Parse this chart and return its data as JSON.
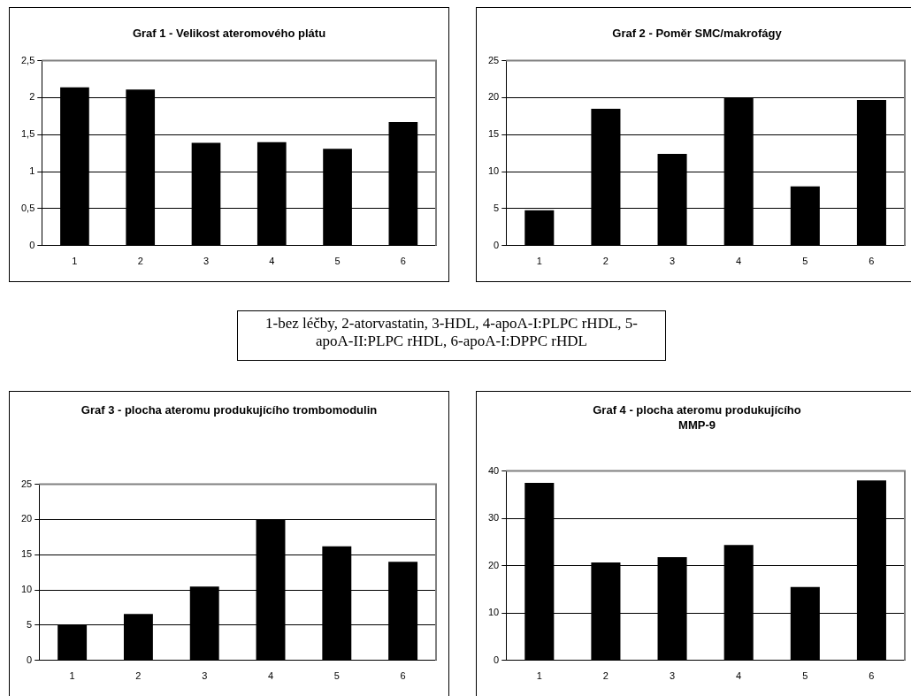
{
  "chart_data": [
    {
      "type": "bar",
      "title": "Graf 1 - Velikost ateromového plátu",
      "categories": [
        "1",
        "2",
        "3",
        "4",
        "5",
        "6"
      ],
      "values": [
        2.14,
        2.11,
        1.39,
        1.4,
        1.31,
        1.67
      ],
      "color": "#000000",
      "ylim": [
        0,
        2.5
      ],
      "yticks": [
        0,
        {
          "value": 0.5,
          "label": "0,5"
        },
        1,
        {
          "value": 1.5,
          "label": "1,5"
        },
        2,
        {
          "value": 2.5,
          "label": "2,5"
        }
      ],
      "grid": "y"
    },
    {
      "type": "bar",
      "title": "Graf 2 - Poměr SMC/makrofágy",
      "categories": [
        "1",
        "2",
        "3",
        "4",
        "5",
        "6"
      ],
      "values": [
        4.8,
        18.5,
        12.4,
        20,
        8,
        19.7
      ],
      "color": "#000000",
      "ylim": [
        0,
        25
      ],
      "yticks": [
        0,
        5,
        10,
        15,
        20,
        25
      ],
      "grid": "y"
    },
    {
      "type": "other",
      "annotations": [
        "1-bez léčby, 2-atorvastatin, 3-HDL, 4-apoA-I:PLPC rHDL, 5-apoA-II:PLPC rHDL, 6-apoA-I:DPPC rHDL"
      ]
    },
    {
      "type": "bar",
      "title": "Graf 3 - plocha ateromu produkujícího trombomodulin",
      "categories": [
        "1",
        "2",
        "3",
        "4",
        "5",
        "6"
      ],
      "values": [
        5,
        6.6,
        10.5,
        20,
        16.2,
        14
      ],
      "color": "#000000",
      "ylim": [
        0,
        25
      ],
      "yticks": [
        0,
        5,
        10,
        15,
        20,
        25
      ],
      "grid": "y"
    },
    {
      "type": "bar",
      "title": "Graf 4 - plocha ateromu produkujícího MMP-9",
      "categories": [
        "1",
        "2",
        "3",
        "4",
        "5",
        "6"
      ],
      "values": [
        37.5,
        20.7,
        21.8,
        24.4,
        15.5,
        38
      ],
      "color": "#000000",
      "ylim": [
        0,
        40
      ],
      "yticks": [
        0,
        10,
        20,
        30,
        40
      ],
      "grid": "y"
    }
  ]
}
